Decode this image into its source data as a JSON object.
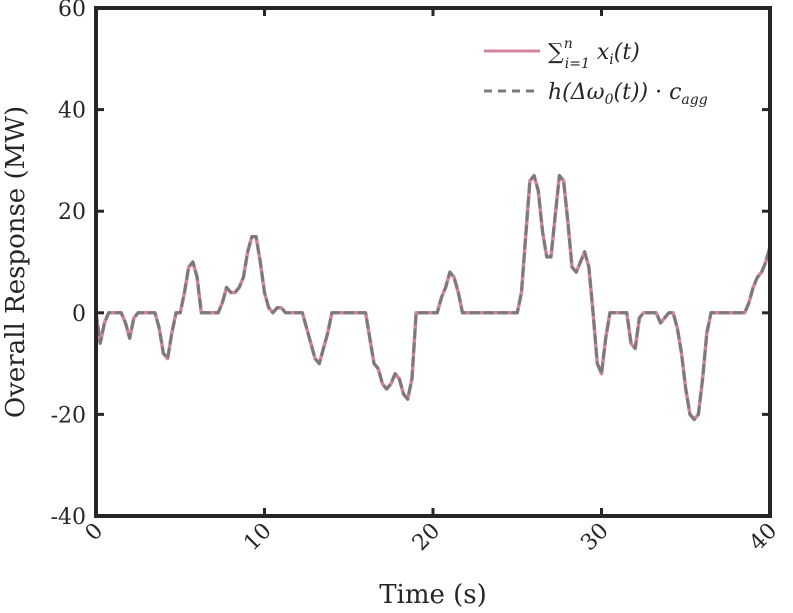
{
  "chart_data": {
    "type": "line",
    "xlabel": "Time (s)",
    "ylabel": "Overall Response (MW)",
    "xlim": [
      0,
      40
    ],
    "ylim": [
      -40,
      60
    ],
    "xticks": [
      0,
      10,
      20,
      30,
      40
    ],
    "yticks": [
      -40,
      -20,
      0,
      20,
      40,
      60
    ],
    "xtick_labels": [
      "0",
      "10",
      "20",
      "30",
      "40"
    ],
    "ytick_labels": [
      "-40",
      "-20",
      "0",
      "20",
      "40",
      "60"
    ],
    "grid": false,
    "legend_position": "top-right",
    "x": [
      0,
      0.25,
      0.5,
      0.75,
      1,
      1.25,
      1.5,
      1.75,
      2,
      2.25,
      2.5,
      2.75,
      3,
      3.25,
      3.5,
      3.75,
      4,
      4.25,
      4.5,
      4.75,
      5,
      5.25,
      5.5,
      5.75,
      6,
      6.25,
      6.5,
      6.75,
      7,
      7.25,
      7.5,
      7.75,
      8,
      8.25,
      8.5,
      8.75,
      9,
      9.25,
      9.5,
      9.75,
      10,
      10.25,
      10.5,
      10.75,
      11,
      11.25,
      11.5,
      11.75,
      12,
      12.25,
      12.5,
      12.75,
      13,
      13.25,
      13.5,
      13.75,
      14,
      14.25,
      14.5,
      14.75,
      15,
      15.25,
      15.5,
      15.75,
      16,
      16.25,
      16.5,
      16.75,
      17,
      17.25,
      17.5,
      17.75,
      18,
      18.25,
      18.5,
      18.75,
      19,
      19.25,
      19.5,
      19.75,
      20,
      20.25,
      20.5,
      20.75,
      21,
      21.25,
      21.5,
      21.75,
      22,
      22.25,
      22.5,
      22.75,
      23,
      23.25,
      23.5,
      23.75,
      24,
      24.25,
      24.5,
      24.75,
      25,
      25.25,
      25.5,
      25.75,
      26,
      26.25,
      26.5,
      26.75,
      27,
      27.25,
      27.5,
      27.75,
      28,
      28.25,
      28.5,
      28.75,
      29,
      29.25,
      29.5,
      29.75,
      30,
      30.25,
      30.5,
      30.75,
      31,
      31.25,
      31.5,
      31.75,
      32,
      32.25,
      32.5,
      32.75,
      33,
      33.25,
      33.5,
      33.75,
      34,
      34.25,
      34.5,
      34.75,
      35,
      35.25,
      35.5,
      35.75,
      36,
      36.25,
      36.5,
      36.75,
      37,
      37.25,
      37.5,
      37.75,
      38,
      38.25,
      38.5,
      38.75,
      39,
      39.25,
      39.5,
      39.75,
      40
    ],
    "series": [
      {
        "name": "∑ⁿᵢ₌₁ xᵢ(t)",
        "color": "#d4879c",
        "style": "solid",
        "values": [
          0,
          -6,
          -2,
          0,
          0,
          0,
          0,
          -2,
          -5,
          -1,
          0,
          0,
          0,
          0,
          0,
          -3,
          -8,
          -9,
          -4,
          0,
          0,
          4,
          9,
          10,
          7,
          0,
          0,
          0,
          0,
          0,
          2,
          5,
          4,
          4,
          5,
          7,
          12,
          15,
          15,
          10,
          4,
          1,
          0,
          1,
          1,
          0,
          0,
          0,
          0,
          0,
          -3,
          -6,
          -9,
          -10,
          -7,
          -4,
          0,
          0,
          0,
          0,
          0,
          0,
          0,
          0,
          0,
          -5,
          -10,
          -11,
          -14,
          -15,
          -14,
          -12,
          -13,
          -16,
          -17,
          -13,
          0,
          0,
          0,
          0,
          0,
          0,
          3,
          5,
          8,
          7,
          4,
          0,
          0,
          0,
          0,
          0,
          0,
          0,
          0,
          0,
          0,
          0,
          0,
          0,
          0,
          4,
          15,
          26,
          27,
          24,
          16,
          11,
          11,
          19,
          27,
          26,
          18,
          9,
          8,
          10,
          12,
          9,
          0,
          -10,
          -12,
          -5,
          0,
          0,
          0,
          0,
          0,
          -6,
          -7,
          -1,
          0,
          0,
          0,
          0,
          -2,
          -1,
          0,
          0,
          -3,
          -8,
          -15,
          -20,
          -21,
          -20,
          -13,
          -4,
          0,
          0,
          0,
          0,
          0,
          0,
          0,
          0,
          0,
          2,
          5,
          7,
          8,
          10,
          13
        ]
      },
      {
        "name": "h(Δω₀(t)) · c_agg",
        "color": "#7a7a7a",
        "style": "dashed",
        "values": [
          0,
          -6,
          -2,
          0,
          0,
          0,
          0,
          -2,
          -5,
          -1,
          0,
          0,
          0,
          0,
          0,
          -3,
          -8,
          -9,
          -4,
          0,
          0,
          4,
          9,
          10,
          7,
          0,
          0,
          0,
          0,
          0,
          2,
          5,
          4,
          4,
          5,
          7,
          12,
          15,
          15,
          10,
          4,
          1,
          0,
          1,
          1,
          0,
          0,
          0,
          0,
          0,
          -3,
          -6,
          -9,
          -10,
          -7,
          -4,
          0,
          0,
          0,
          0,
          0,
          0,
          0,
          0,
          0,
          -5,
          -10,
          -11,
          -14,
          -15,
          -14,
          -12,
          -13,
          -16,
          -17,
          -13,
          0,
          0,
          0,
          0,
          0,
          0,
          3,
          5,
          8,
          7,
          4,
          0,
          0,
          0,
          0,
          0,
          0,
          0,
          0,
          0,
          0,
          0,
          0,
          0,
          0,
          4,
          15,
          26,
          27,
          24,
          16,
          11,
          11,
          19,
          27,
          26,
          18,
          9,
          8,
          10,
          12,
          9,
          0,
          -10,
          -12,
          -5,
          0,
          0,
          0,
          0,
          0,
          -6,
          -7,
          -1,
          0,
          0,
          0,
          0,
          -2,
          -1,
          0,
          0,
          -3,
          -8,
          -15,
          -20,
          -21,
          -20,
          -13,
          -4,
          0,
          0,
          0,
          0,
          0,
          0,
          0,
          0,
          0,
          2,
          5,
          7,
          8,
          10,
          13
        ]
      }
    ]
  },
  "legend": {
    "entry1": {
      "base": "∑",
      "sup": "n",
      "sub": "i=1",
      "tail_a": " x",
      "tail_sub": "i",
      "tail_b": "(t)"
    },
    "entry2": {
      "main": "h(Δω",
      "sub0": "0",
      "rest": "(t)) · c",
      "sub": "agg"
    }
  }
}
